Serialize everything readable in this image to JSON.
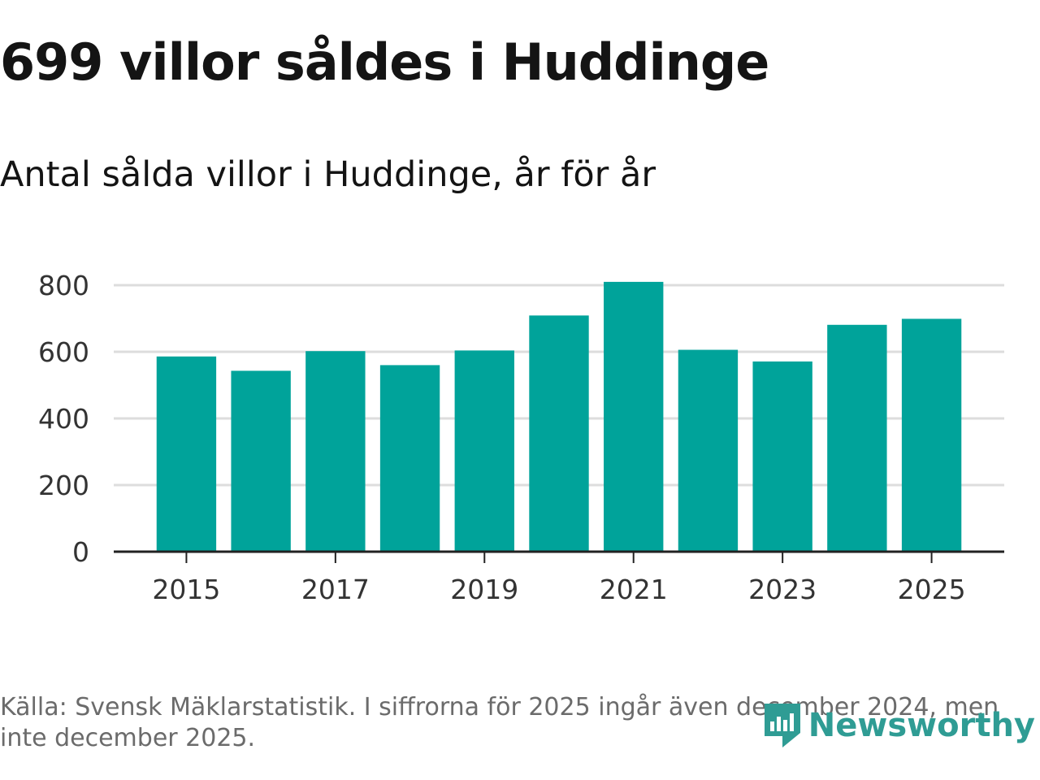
{
  "title": "699 villor såldes i Huddinge",
  "subtitle": "Antal sålda villor i Huddinge, år för år",
  "source": "Källa: Svensk Mäklarstatistik. I siffrorna för 2025 ingår även december 2024, men inte december 2025.",
  "logo_text": "Newsworthy",
  "colors": {
    "bar": "#00a39a",
    "grid": "#dddddd",
    "axis": "#222222",
    "logo": "#2f9c94"
  },
  "chart_data": {
    "type": "bar",
    "title": "Antal sålda villor i Huddinge, år för år",
    "xlabel": "",
    "ylabel": "",
    "categories": [
      "2015",
      "2016",
      "2017",
      "2018",
      "2019",
      "2020",
      "2021",
      "2022",
      "2023",
      "2024",
      "2025"
    ],
    "values": [
      586,
      543,
      602,
      560,
      604,
      709,
      810,
      606,
      571,
      681,
      699
    ],
    "x_tick_labels": [
      "2015",
      "2017",
      "2019",
      "2021",
      "2023",
      "2025"
    ],
    "y_ticks": [
      0,
      200,
      400,
      600,
      800
    ],
    "ylim": [
      0,
      800
    ],
    "grid": true
  }
}
